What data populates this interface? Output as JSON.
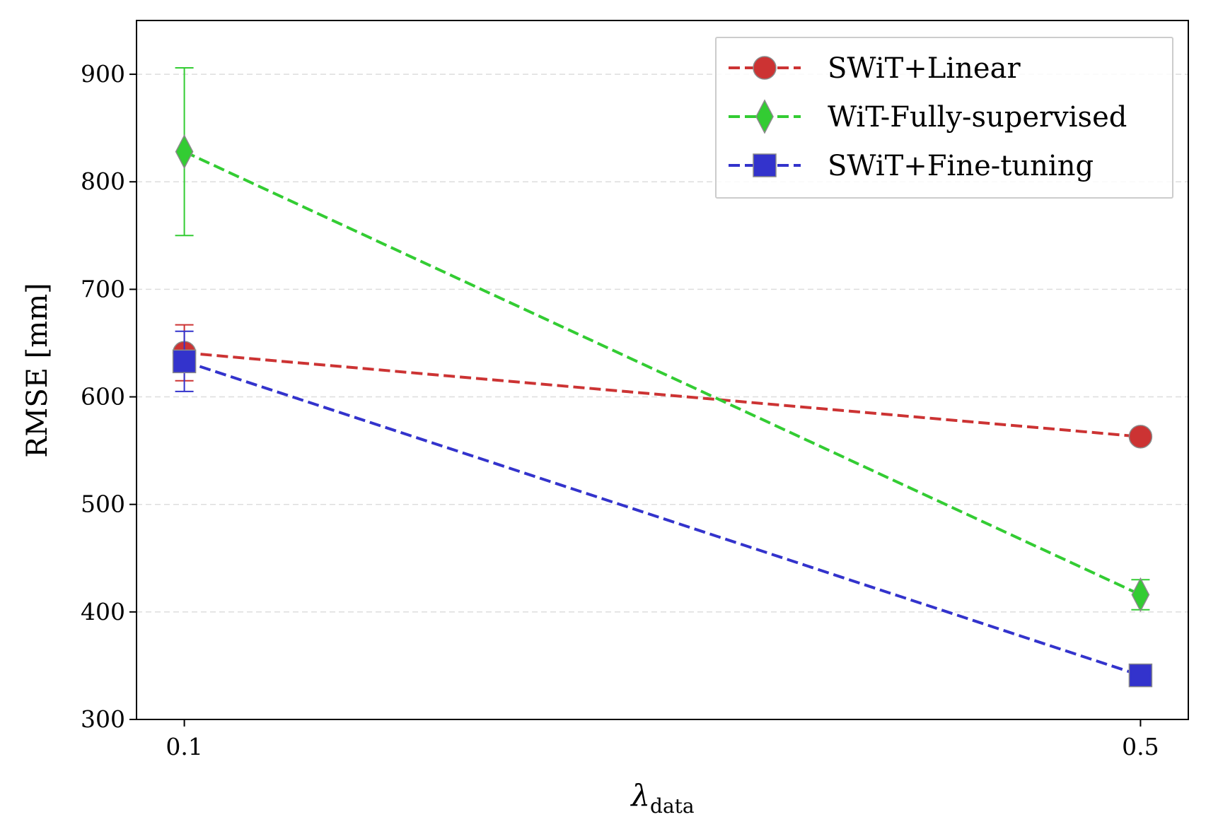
{
  "chart_data": {
    "type": "line",
    "title": "",
    "xlabel": "λ",
    "xlabel_subscript": "data",
    "ylabel": "RMSE [mm]",
    "categories": [
      "0.1",
      "0.5"
    ],
    "x": [
      0.1,
      0.5
    ],
    "xlim": [
      0.08,
      0.52
    ],
    "ylim": [
      300,
      950
    ],
    "yticks": [
      300,
      400,
      500,
      600,
      700,
      800,
      900
    ],
    "yticklabels": [
      "300",
      "400",
      "500",
      "600",
      "700",
      "800",
      "900"
    ],
    "grid": "horizontal dashed",
    "legend_position": "top-right",
    "series": [
      {
        "name": "SWiT+Linear",
        "marker": "circle",
        "color": "#cc3333",
        "values": [
          641,
          563
        ],
        "err": [
          26,
          3
        ]
      },
      {
        "name": "WiT-Fully-supervised",
        "marker": "diamond",
        "color": "#33cc33",
        "values": [
          828,
          416
        ],
        "err": [
          78,
          14
        ]
      },
      {
        "name": "SWiT+Fine-tuning",
        "marker": "square",
        "color": "#3333cc",
        "values": [
          633,
          341
        ],
        "err": [
          28,
          3
        ]
      }
    ]
  }
}
